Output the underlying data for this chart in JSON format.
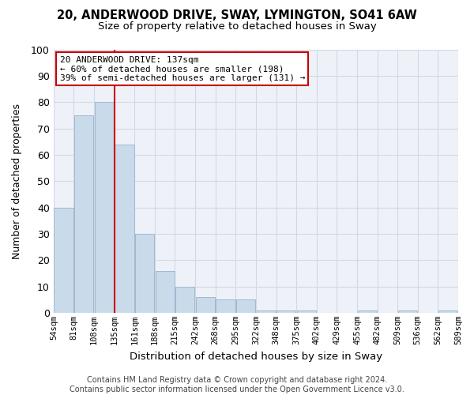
{
  "title1": "20, ANDERWOOD DRIVE, SWAY, LYMINGTON, SO41 6AW",
  "title2": "Size of property relative to detached houses in Sway",
  "xlabel": "Distribution of detached houses by size in Sway",
  "ylabel": "Number of detached properties",
  "bar_values": [
    40,
    75,
    80,
    64,
    30,
    16,
    10,
    6,
    5,
    5,
    1,
    1,
    1,
    0,
    0,
    1,
    0,
    1,
    0,
    1
  ],
  "bin_labels": [
    "54sqm",
    "81sqm",
    "108sqm",
    "135sqm",
    "161sqm",
    "188sqm",
    "215sqm",
    "242sqm",
    "268sqm",
    "295sqm",
    "322sqm",
    "348sqm",
    "375sqm",
    "402sqm",
    "429sqm",
    "455sqm",
    "482sqm",
    "509sqm",
    "536sqm",
    "562sqm",
    "589sqm"
  ],
  "bar_color": "#c9daea",
  "bar_edge_color": "#a0b8d0",
  "grid_color": "#d0d8e8",
  "bg_color": "#eef2f8",
  "vline_x": 3,
  "vline_color": "#cc0000",
  "annotation_text": "20 ANDERWOOD DRIVE: 137sqm\n← 60% of detached houses are smaller (198)\n39% of semi-detached houses are larger (131) →",
  "annotation_box_color": "#cc0000",
  "footnote": "Contains HM Land Registry data © Crown copyright and database right 2024.\nContains public sector information licensed under the Open Government Licence v3.0.",
  "ylim": [
    0,
    100
  ],
  "yticks": [
    0,
    10,
    20,
    30,
    40,
    50,
    60,
    70,
    80,
    90,
    100
  ]
}
